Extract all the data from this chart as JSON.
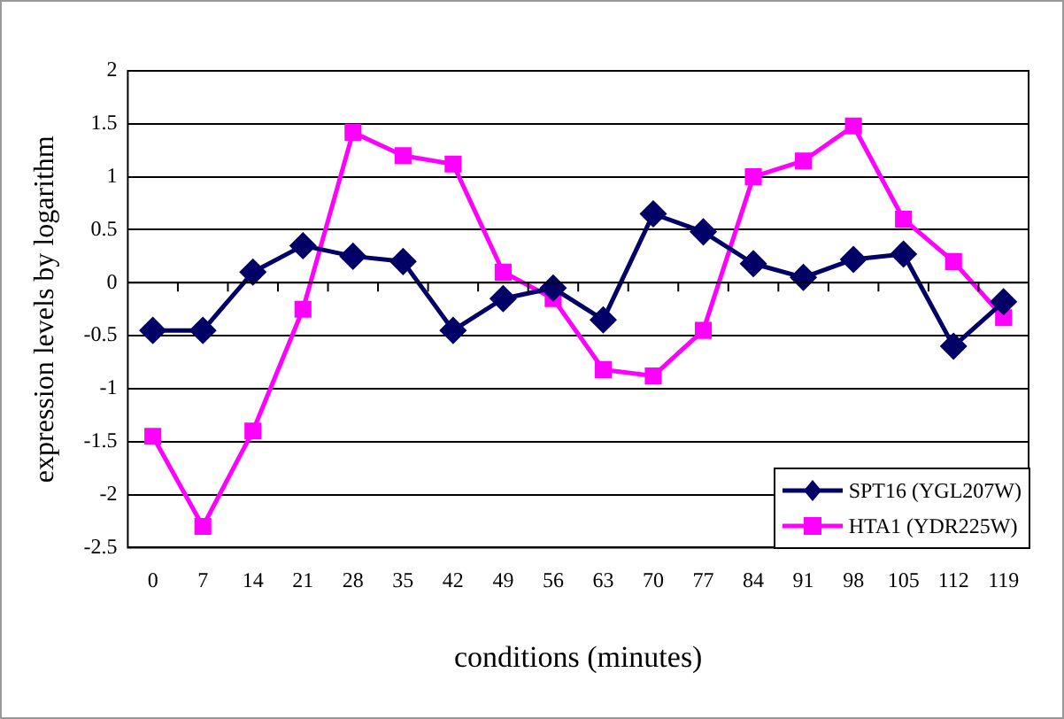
{
  "chart_data": {
    "type": "line",
    "xlabel": "conditions (minutes)",
    "ylabel": "expression levels by logarithm",
    "categories": [
      "0",
      "7",
      "14",
      "21",
      "28",
      "35",
      "42",
      "49",
      "56",
      "63",
      "70",
      "77",
      "84",
      "91",
      "98",
      "105",
      "112",
      "119"
    ],
    "series": [
      {
        "name": "SPT16 (YGL207W)",
        "color": "#000066",
        "marker": "diamond",
        "values": [
          -0.45,
          -0.45,
          0.1,
          0.35,
          0.25,
          0.2,
          -0.45,
          -0.15,
          -0.05,
          -0.35,
          0.65,
          0.48,
          0.18,
          0.05,
          0.22,
          0.27,
          -0.6,
          -0.18
        ]
      },
      {
        "name": "HTA1 (YDR225W)",
        "color": "#ff00ff",
        "marker": "square",
        "values": [
          -1.45,
          -2.3,
          -1.4,
          -0.25,
          1.42,
          1.2,
          1.12,
          0.1,
          -0.15,
          -0.82,
          -0.88,
          -0.45,
          1.0,
          1.15,
          1.48,
          0.6,
          0.2,
          -0.33
        ]
      }
    ],
    "ylim": [
      -2.5,
      2
    ],
    "yticks": [
      {
        "value": -2.5,
        "label": "-2.5"
      },
      {
        "value": -2,
        "label": "-2"
      },
      {
        "value": -1.5,
        "label": "-1.5"
      },
      {
        "value": -1,
        "label": "-1"
      },
      {
        "value": -0.5,
        "label": "-0.5"
      },
      0,
      {
        "value": 0.5,
        "label": "0.5"
      },
      1,
      {
        "value": 1.5,
        "label": "1.5"
      },
      2
    ],
    "grid": "y",
    "legend": "bottom right",
    "line_style": "solid"
  }
}
